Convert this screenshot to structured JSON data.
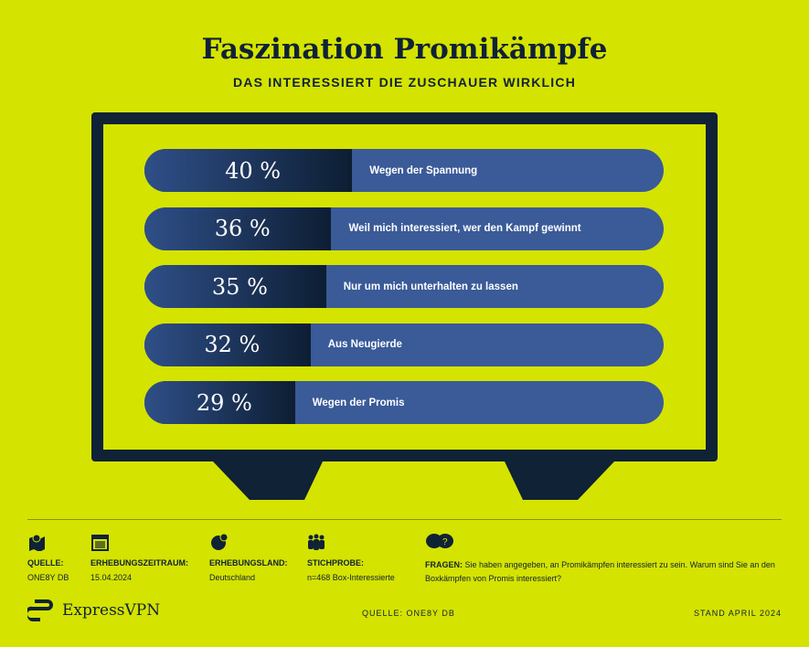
{
  "title": "Faszination Promikämpfe",
  "subtitle": "DAS INTERESSIERT DIE ZUSCHAUER WIRKLICH",
  "chart_data": {
    "type": "bar",
    "orientation": "horizontal",
    "categories": [
      "Wegen der Spannung",
      "Weil mich interessiert, wer den Kampf gewinnt",
      "Nur um mich unterhalten zu lassen",
      "Aus Neugierde",
      "Wegen der Promis"
    ],
    "values": [
      40,
      36,
      35,
      32,
      29
    ],
    "value_labels": [
      "40 %",
      "36 %",
      "35 %",
      "32 %",
      "29 %"
    ],
    "xlim": [
      0,
      100
    ],
    "colors": {
      "fill": "#0d1e33",
      "track": "#3a5a98",
      "background": "#d5e300"
    }
  },
  "meta": [
    {
      "icon": "map-pin-icon",
      "label": "QUELLE:",
      "value": "ONE8Y DB"
    },
    {
      "icon": "calendar-icon",
      "label": "ERHEBUNGSZEITRAUM:",
      "value": "15.04.2024"
    },
    {
      "icon": "globe-icon",
      "label": "ERHEBUNGSLAND:",
      "value": "Deutschland"
    },
    {
      "icon": "people-icon",
      "label": "STICHPROBE:",
      "value": "n=468 Box-Interessierte"
    }
  ],
  "question": {
    "icon": "speech-bubbles-icon",
    "label": "FRAGEN:",
    "text": "Sie haben angegeben, an Promikämpfen interessiert zu sein. Warum sind Sie an den Boxkämpfen von Promis interessiert?"
  },
  "footer": {
    "brand": "ExpressVPN",
    "source": "QUELLE: ONE8Y DB",
    "date": "STAND APRIL 2024"
  }
}
